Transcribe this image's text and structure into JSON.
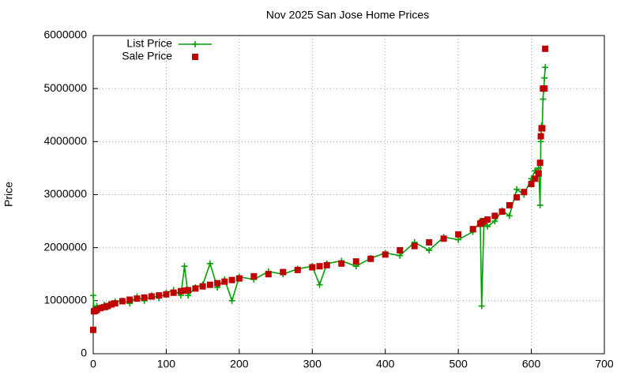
{
  "chart_data": {
    "type": "line",
    "title": "Nov 2025 San Jose Home Prices",
    "y_label": "Price",
    "x": [
      0,
      1,
      3,
      5,
      10,
      15,
      20,
      25,
      30,
      40,
      50,
      60,
      70,
      80,
      90,
      100,
      110,
      120,
      125,
      130,
      140,
      150,
      160,
      170,
      180,
      190,
      200,
      220,
      240,
      260,
      280,
      300,
      310,
      320,
      340,
      360,
      380,
      400,
      420,
      440,
      460,
      480,
      500,
      520,
      530,
      532,
      535,
      540,
      550,
      560,
      570,
      580,
      590,
      600,
      605,
      610,
      612,
      613,
      614,
      615,
      616,
      618,
      619
    ],
    "series": [
      {
        "name": "List Price",
        "color": "#00a000",
        "style": "linespoints",
        "values": [
          1100000,
          800000,
          850000,
          900000,
          870000,
          920000,
          880000,
          950000,
          980000,
          1000000,
          950000,
          1080000,
          1000000,
          1100000,
          1050000,
          1150000,
          1200000,
          1100000,
          1650000,
          1100000,
          1250000,
          1300000,
          1700000,
          1250000,
          1400000,
          1000000,
          1450000,
          1400000,
          1550000,
          1500000,
          1600000,
          1650000,
          1300000,
          1700000,
          1750000,
          1650000,
          1800000,
          1900000,
          1850000,
          2100000,
          1950000,
          2200000,
          2150000,
          2300000,
          2500000,
          900000,
          2450000,
          2400000,
          2500000,
          2700000,
          2600000,
          3100000,
          3000000,
          3300000,
          3450000,
          3500000,
          2800000,
          4000000,
          4300000,
          4300000,
          4800000,
          5200000,
          5400000
        ]
      },
      {
        "name": "Sale Price",
        "color": "#c00000",
        "style": "points",
        "values": [
          450000,
          800000,
          810000,
          830000,
          860000,
          880000,
          900000,
          930000,
          950000,
          990000,
          1020000,
          1040000,
          1060000,
          1080000,
          1100000,
          1120000,
          1150000,
          1180000,
          1190000,
          1200000,
          1230000,
          1270000,
          1300000,
          1330000,
          1360000,
          1390000,
          1420000,
          1460000,
          1500000,
          1540000,
          1580000,
          1630000,
          1650000,
          1670000,
          1700000,
          1740000,
          1790000,
          1870000,
          1950000,
          2030000,
          2100000,
          2170000,
          2250000,
          2350000,
          2450000,
          2470000,
          2500000,
          2530000,
          2600000,
          2680000,
          2800000,
          2950000,
          3050000,
          3200000,
          3300000,
          3400000,
          3600000,
          4100000,
          4250000,
          4250000,
          5000000,
          5000000,
          5750000
        ]
      }
    ],
    "xlim": [
      0,
      700
    ],
    "xticks": [
      0,
      100,
      200,
      300,
      400,
      500,
      600,
      700
    ],
    "ylim": [
      0,
      6000000
    ],
    "yticks": [
      0,
      1000000,
      2000000,
      3000000,
      4000000,
      5000000,
      6000000
    ],
    "grid": true,
    "legend": "top-left"
  }
}
